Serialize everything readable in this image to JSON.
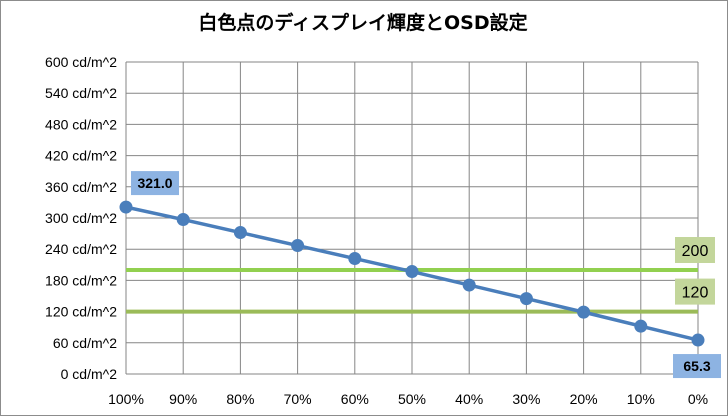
{
  "chart_data": {
    "type": "line",
    "title": "白色点のディスプレイ輝度とOSD設定",
    "xlabel": "",
    "ylabel": "",
    "categories": [
      "100%",
      "90%",
      "80%",
      "70%",
      "60%",
      "50%",
      "40%",
      "30%",
      "20%",
      "10%",
      "0%"
    ],
    "y_tick_labels": [
      "0 cd/m^2",
      "60 cd/m^2",
      "120 cd/m^2",
      "180 cd/m^2",
      "240 cd/m^2",
      "300 cd/m^2",
      "360 cd/m^2",
      "420 cd/m^2",
      "480 cd/m^2",
      "540 cd/m^2",
      "600 cd/m^2"
    ],
    "ylim": [
      0,
      600
    ],
    "grid": true,
    "legend": "none",
    "series": [
      {
        "values": [
          321.0,
          297,
          272,
          247,
          222,
          197,
          171,
          145,
          119,
          92,
          65.3
        ],
        "color": "#4a7ebb",
        "data_labels": [
          {
            "index": 0,
            "text": "321.0"
          },
          {
            "index": 10,
            "text": "65.3"
          }
        ]
      }
    ],
    "reference_lines": [
      {
        "value": 200,
        "label": "200",
        "color": "#92d050"
      },
      {
        "value": 120,
        "label": "120",
        "color": "#9bbb59"
      }
    ],
    "colors": {
      "label_box_blue": "#8db3e2",
      "label_box_green": "#c3d69b",
      "gridline": "#868686"
    }
  }
}
